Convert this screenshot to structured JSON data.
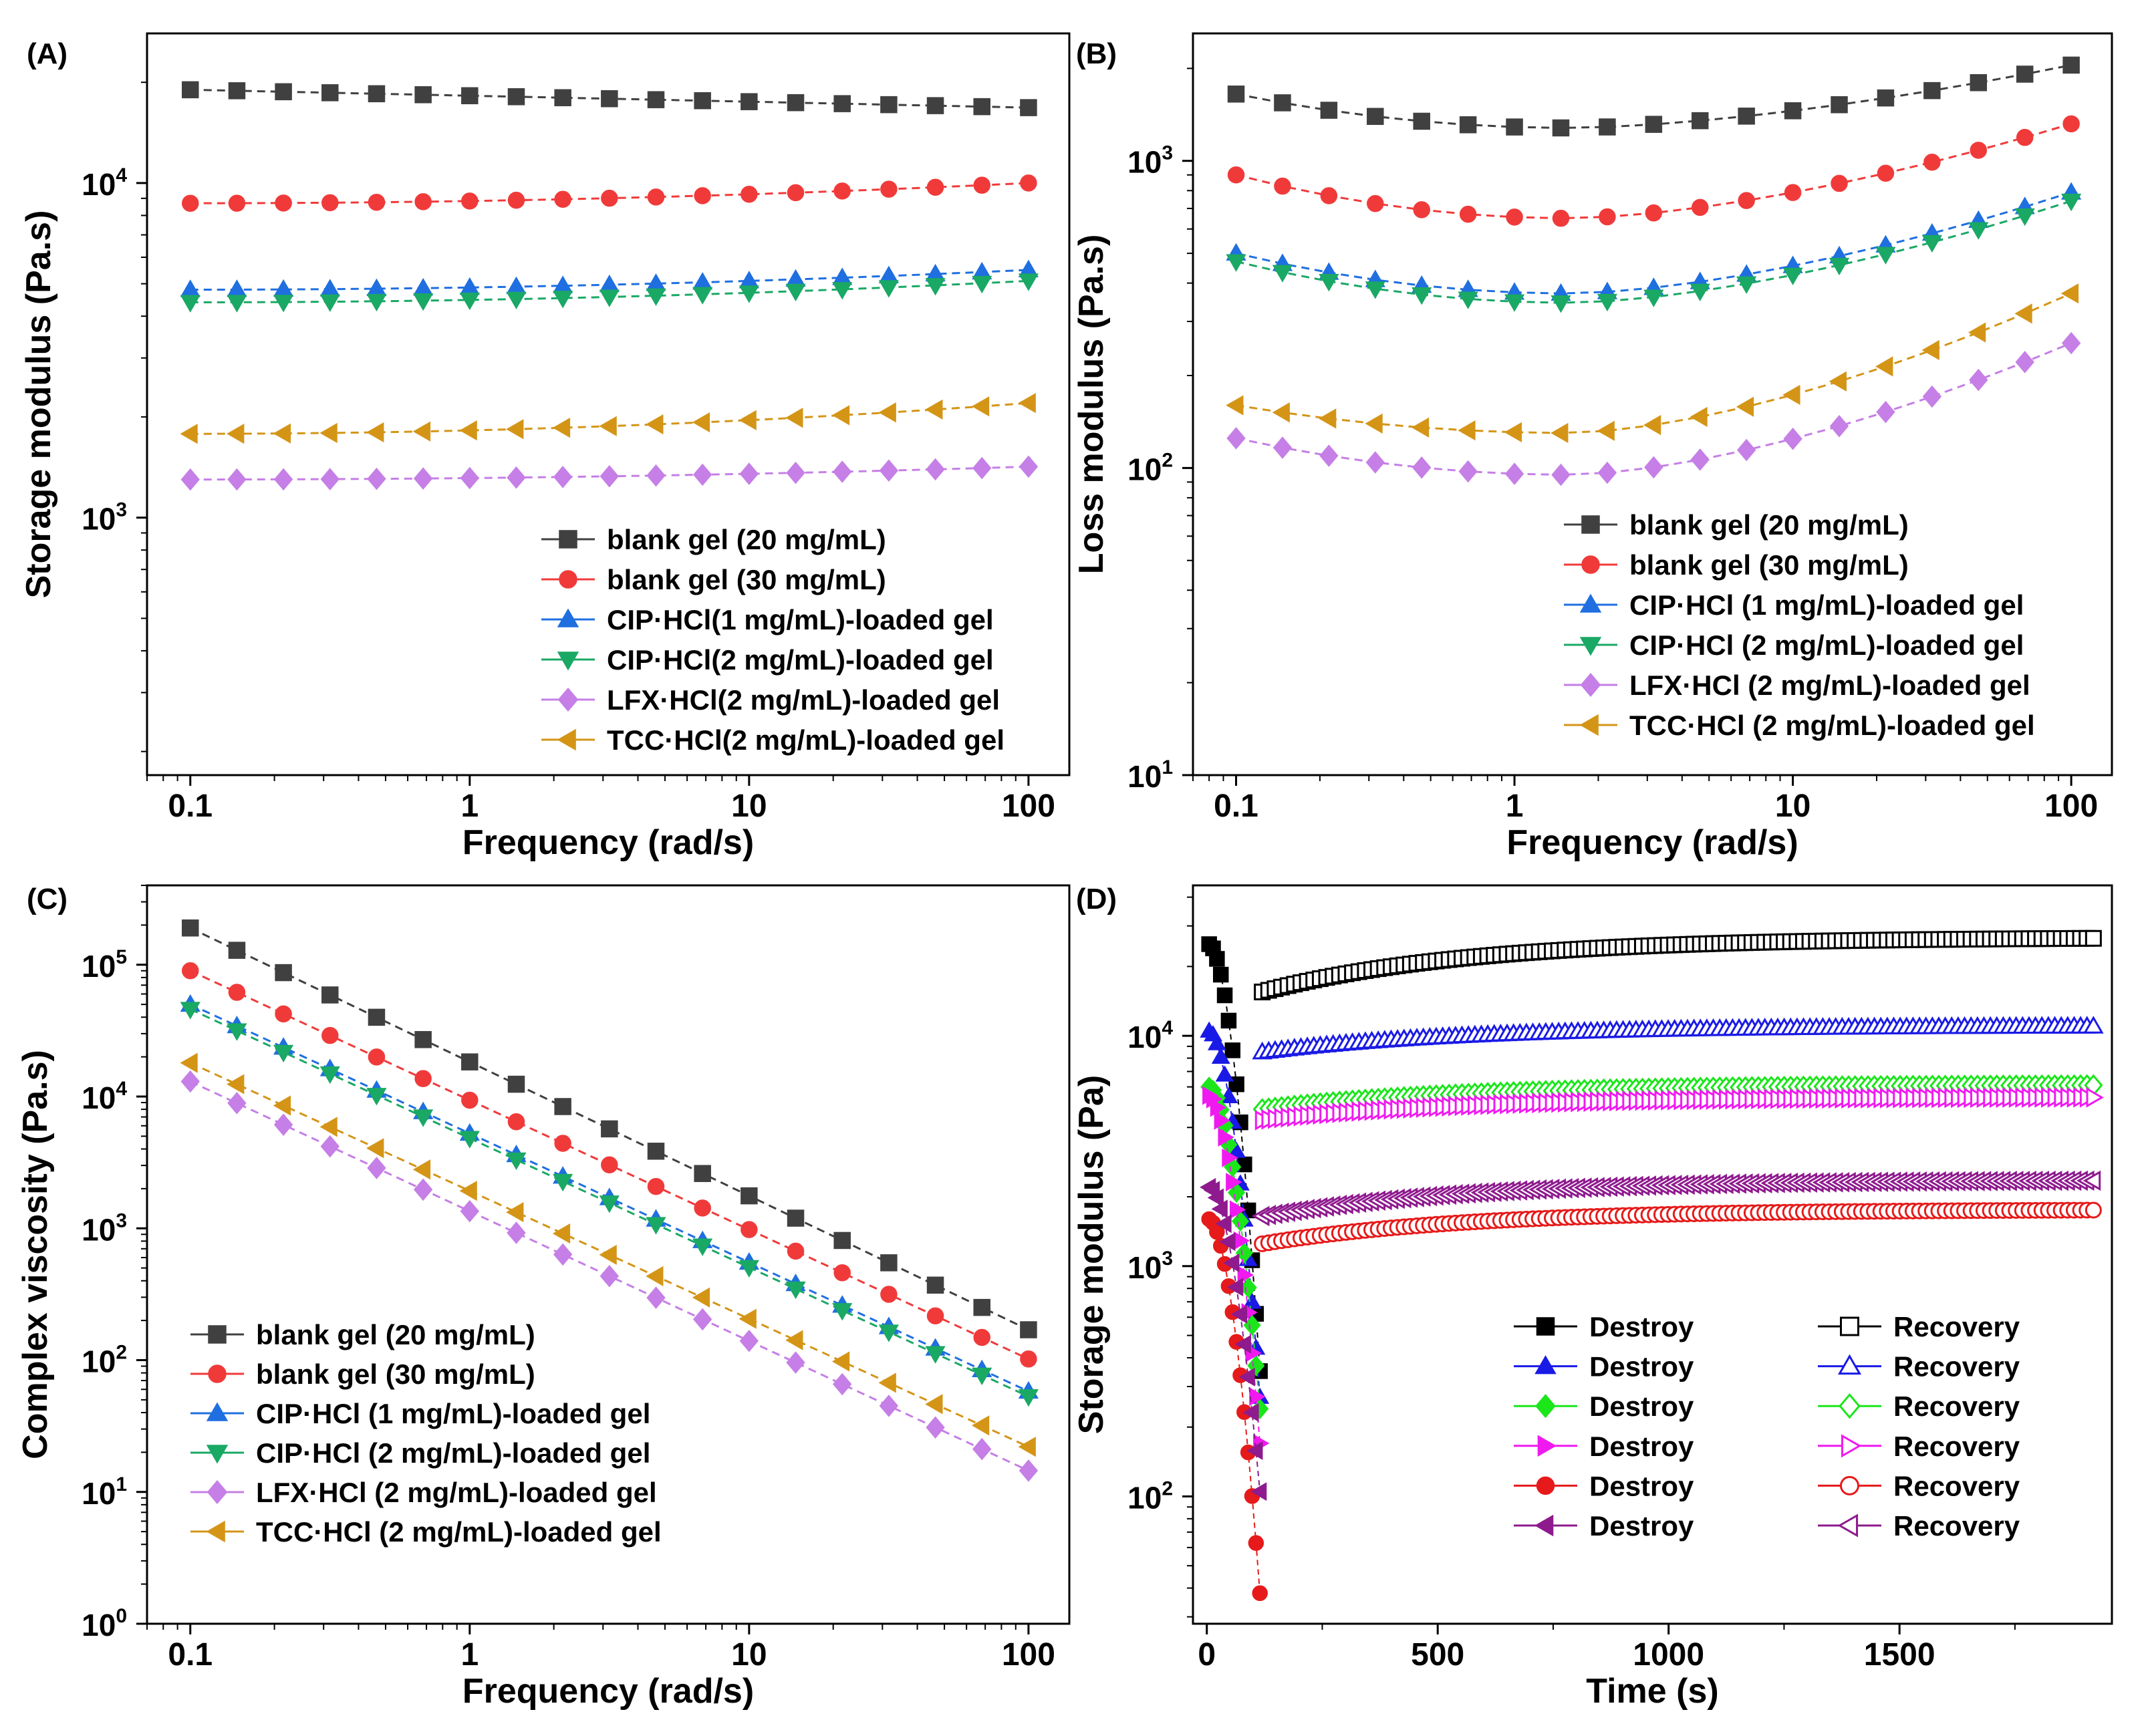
{
  "chart_data": [
    {
      "panel": "(A)",
      "type": "line",
      "xscale": "log",
      "yscale": "log",
      "xlabel": "Frequency (rad/s)",
      "ylabel": "Storage modulus (Pa.s)",
      "xlim": [
        0.07,
        140
      ],
      "ylim": [
        170,
        28000
      ],
      "xticks": [
        {
          "v": 0.1,
          "label": "0.1"
        },
        {
          "v": 1,
          "label": "1"
        },
        {
          "v": 10,
          "label": "10"
        },
        {
          "v": 100,
          "label": "100"
        }
      ],
      "yticks": [
        {
          "v": 1000,
          "b": "10",
          "e": "3"
        },
        {
          "v": 10000,
          "b": "10",
          "e": "4"
        }
      ],
      "legend_position": "bottom-right",
      "series": [
        {
          "name": "blank gel (20 mg/mL)",
          "color": "#404040",
          "marker": "square",
          "y0": 19000,
          "y1": 16800
        },
        {
          "name": "blank gel (30 mg/mL)",
          "color": "#f03a3a",
          "marker": "circle",
          "y0": 8700,
          "y1": 10000
        },
        {
          "name": "CIP·HCl(1 mg/mL)-loaded gel",
          "color": "#1f6fe0",
          "marker": "triangle-up",
          "y0": 4800,
          "y1": 5500
        },
        {
          "name": "CIP·HCl(2 mg/mL)-loaded gel",
          "color": "#1aa865",
          "marker": "triangle-down",
          "y0": 4400,
          "y1": 5100
        },
        {
          "name": "LFX·HCl(2 mg/mL)-loaded gel",
          "color": "#c57fe6",
          "marker": "diamond",
          "y0": 1300,
          "y1": 1420
        },
        {
          "name": "TCC·HCl(2 mg/mL)-loaded gel",
          "color": "#d49517",
          "marker": "triangle-left",
          "y0": 1780,
          "y1": 2200
        }
      ]
    },
    {
      "panel": "(B)",
      "type": "line",
      "xscale": "log",
      "yscale": "log",
      "xlabel": "Frequency (rad/s)",
      "ylabel": "Loss modulus (Pa.s)",
      "xlim": [
        0.07,
        140
      ],
      "ylim": [
        10,
        2600
      ],
      "xticks": [
        {
          "v": 0.1,
          "label": "0.1"
        },
        {
          "v": 1,
          "label": "1"
        },
        {
          "v": 10,
          "label": "10"
        },
        {
          "v": 100,
          "label": "100"
        }
      ],
      "yticks": [
        {
          "v": 10,
          "b": "10",
          "e": "1"
        },
        {
          "v": 100,
          "b": "10",
          "e": "2"
        },
        {
          "v": 1000,
          "b": "10",
          "e": "3"
        }
      ],
      "legend_position": "bottom-right",
      "series": [
        {
          "name": "blank gel (20 mg/mL)",
          "color": "#404040",
          "marker": "square",
          "y0": 1650,
          "ymin": 1280,
          "y1": 2050
        },
        {
          "name": "blank gel (30 mg/mL)",
          "color": "#f03a3a",
          "marker": "circle",
          "y0": 900,
          "ymin": 650,
          "y1": 1320
        },
        {
          "name": "CIP·HCl (1 mg/mL)-loaded gel",
          "color": "#1f6fe0",
          "marker": "triangle-up",
          "y0": 500,
          "ymin": 370,
          "y1": 790
        },
        {
          "name": "CIP·HCl (2 mg/mL)-loaded gel",
          "color": "#1aa865",
          "marker": "triangle-down",
          "y0": 470,
          "ymin": 345,
          "y1": 740
        },
        {
          "name": "LFX·HCl (2 mg/mL)-loaded gel",
          "color": "#c57fe6",
          "marker": "diamond",
          "y0": 125,
          "ymin": 95,
          "y1": 255
        },
        {
          "name": "TCC·HCl (2 mg/mL)-loaded gel",
          "color": "#d49517",
          "marker": "triangle-left",
          "y0": 160,
          "ymin": 130,
          "y1": 370
        }
      ]
    },
    {
      "panel": "(C)",
      "type": "line",
      "xscale": "log",
      "yscale": "log",
      "xlabel": "Frequency (rad/s)",
      "ylabel": "Complex viscosity (Pa.s)",
      "xlim": [
        0.07,
        140
      ],
      "ylim": [
        1,
        400000
      ],
      "xticks": [
        {
          "v": 0.1,
          "label": "0.1"
        },
        {
          "v": 1,
          "label": "1"
        },
        {
          "v": 10,
          "label": "10"
        },
        {
          "v": 100,
          "label": "100"
        }
      ],
      "yticks": [
        {
          "v": 1,
          "b": "10",
          "e": "0"
        },
        {
          "v": 10,
          "b": "10",
          "e": "1"
        },
        {
          "v": 100,
          "b": "10",
          "e": "2"
        },
        {
          "v": 1000,
          "b": "10",
          "e": "3"
        },
        {
          "v": 10000,
          "b": "10",
          "e": "4"
        },
        {
          "v": 100000,
          "b": "10",
          "e": "5"
        }
      ],
      "legend_position": "bottom-left",
      "series": [
        {
          "name": "blank gel (20 mg/mL)",
          "color": "#404040",
          "marker": "square",
          "y0": 190000,
          "y1": 170
        },
        {
          "name": "blank gel (30 mg/mL)",
          "color": "#f03a3a",
          "marker": "circle",
          "y0": 90000,
          "y1": 102
        },
        {
          "name": "CIP·HCl (1 mg/mL)-loaded gel",
          "color": "#1f6fe0",
          "marker": "triangle-up",
          "y0": 50000,
          "y1": 58
        },
        {
          "name": "CIP·HCl (2 mg/mL)-loaded gel",
          "color": "#1aa865",
          "marker": "triangle-down",
          "y0": 46000,
          "y1": 53
        },
        {
          "name": "LFX·HCl (2 mg/mL)-loaded gel",
          "color": "#c57fe6",
          "marker": "diamond",
          "y0": 13000,
          "y1": 14.5
        },
        {
          "name": "TCC·HCl (2 mg/mL)-loaded gel",
          "color": "#d49517",
          "marker": "triangle-left",
          "y0": 18000,
          "y1": 22
        }
      ]
    },
    {
      "panel": "(D)",
      "type": "scatter",
      "xscale": "linear",
      "yscale": "log",
      "xlabel": "Time (s)",
      "ylabel": "Storage modulus (Pa)",
      "xlim": [
        -30,
        1960
      ],
      "ylim": [
        28,
        45000
      ],
      "xticks": [
        {
          "v": 0,
          "label": "0"
        },
        {
          "v": 500,
          "label": "500"
        },
        {
          "v": 1000,
          "label": "1000"
        },
        {
          "v": 1500,
          "label": "1500"
        }
      ],
      "yticks": [
        {
          "v": 100,
          "b": "10",
          "e": "2"
        },
        {
          "v": 1000,
          "b": "10",
          "e": "3"
        },
        {
          "v": 10000,
          "b": "10",
          "e": "4"
        }
      ],
      "legend_position": "center-right",
      "destroy_label": "Destroy",
      "recovery_label": "Recovery",
      "series": [
        {
          "color": "#000000",
          "marker": "square",
          "destroy_start": 25000,
          "destroy_end": 350,
          "recovery_start": 15500,
          "recovery_end": 26500
        },
        {
          "color": "#1a1ae6",
          "marker": "triangle-up",
          "destroy_start": 10500,
          "destroy_end": 270,
          "recovery_start": 8500,
          "recovery_end": 11000
        },
        {
          "color": "#1ae61a",
          "marker": "diamond",
          "destroy_start": 6000,
          "destroy_end": 240,
          "recovery_start": 4800,
          "recovery_end": 6100
        },
        {
          "color": "#f01af0",
          "marker": "triangle-right",
          "destroy_start": 5500,
          "destroy_end": 170,
          "recovery_start": 4300,
          "recovery_end": 5400
        },
        {
          "color": "#e61a1a",
          "marker": "circle",
          "destroy_start": 1600,
          "destroy_end": 38,
          "recovery_start": 1250,
          "recovery_end": 1750
        },
        {
          "color": "#8e1a8e",
          "marker": "triangle-left",
          "destroy_start": 2200,
          "destroy_end": 105,
          "recovery_start": 1650,
          "recovery_end": 2350
        }
      ]
    }
  ]
}
